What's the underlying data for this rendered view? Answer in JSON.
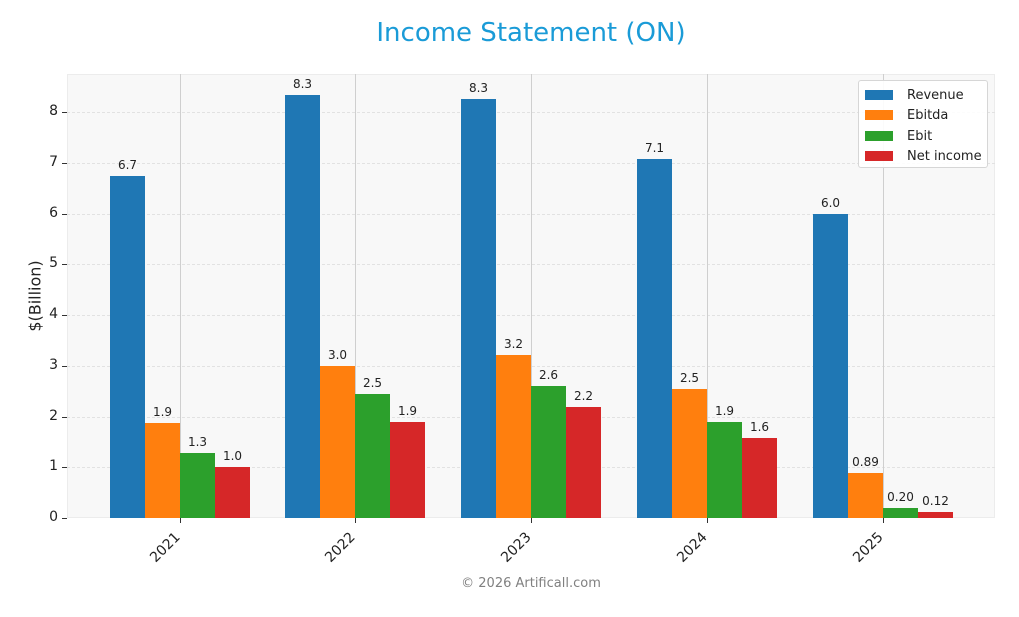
{
  "header": {
    "title": "Income Statement (ON)"
  },
  "footer": {
    "copyright": "© 2026 Artificall.com"
  },
  "colors": {
    "title": "#1a9bd7",
    "revenue": "#1f77b4",
    "ebitda": "#ff7f0e",
    "ebit": "#2ca02c",
    "net_income": "#d62728"
  },
  "axes": {
    "ylabel": "$(Billion)",
    "yticks": [
      "0",
      "1",
      "2",
      "3",
      "4",
      "5",
      "6",
      "7",
      "8"
    ],
    "xticks": [
      "2021",
      "2022",
      "2023",
      "2024",
      "2025"
    ]
  },
  "legend": {
    "items": [
      {
        "label": "Revenue",
        "color": "#1f77b4"
      },
      {
        "label": "Ebitda",
        "color": "#ff7f0e"
      },
      {
        "label": "Ebit",
        "color": "#2ca02c"
      },
      {
        "label": "Net income",
        "color": "#d62728"
      }
    ]
  },
  "chart_data": {
    "type": "bar",
    "title": "Income Statement (ON)",
    "xlabel": "",
    "ylabel": "$(Billion)",
    "categories": [
      "2021",
      "2022",
      "2023",
      "2024",
      "2025"
    ],
    "series": [
      {
        "name": "Revenue",
        "color": "#1f77b4",
        "values": [
          6.74,
          8.33,
          8.25,
          7.08,
          5.99
        ],
        "labels": [
          "6.7",
          "8.3",
          "8.3",
          "7.1",
          "6.0"
        ]
      },
      {
        "name": "Ebitda",
        "color": "#ff7f0e",
        "values": [
          1.87,
          3.0,
          3.22,
          2.55,
          0.89
        ],
        "labels": [
          "1.9",
          "3.0",
          "3.2",
          "2.5",
          "0.89"
        ]
      },
      {
        "name": "Ebit",
        "color": "#2ca02c",
        "values": [
          1.29,
          2.45,
          2.6,
          1.9,
          0.2
        ],
        "labels": [
          "1.3",
          "2.5",
          "2.6",
          "1.9",
          "0.20"
        ]
      },
      {
        "name": "Net income",
        "color": "#d62728",
        "values": [
          1.01,
          1.9,
          2.18,
          1.57,
          0.12
        ],
        "labels": [
          "1.0",
          "1.9",
          "2.2",
          "1.6",
          "0.12"
        ]
      }
    ],
    "ylim": [
      0,
      8.75
    ],
    "yticks": [
      0,
      1,
      2,
      3,
      4,
      5,
      6,
      7,
      8
    ],
    "grid": true,
    "legend_position": "upper right"
  }
}
